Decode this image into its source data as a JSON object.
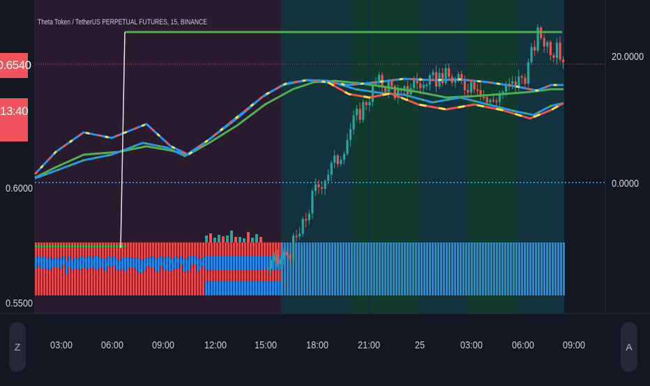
{
  "chart_title": "Theta Token / TetherUS PERPETUAL FUTURES, 15, BINANCE",
  "left_axis": {
    "current_price_badge": "0.6540",
    "countdown_badge": "13:40",
    "tick_labels": [
      "0.6000",
      "0.5500"
    ]
  },
  "right_axis": {
    "tick_labels": [
      "20.0000",
      "0.0000"
    ]
  },
  "time_axis": {
    "labels": [
      "03:00",
      "06:00",
      "09:00",
      "12:00",
      "15:00",
      "18:00",
      "21:00",
      "25",
      "03:00",
      "06:00",
      "09:00"
    ]
  },
  "buttons": {
    "auto_scale_label": "A",
    "zoom_label": "Z"
  },
  "colors": {
    "background": "#131722",
    "bg_zone_maroon": "#2a1a2e",
    "bg_zone_teal": "#12323d",
    "bg_zone_green": "#103a2c",
    "candle_up": "#26a69a",
    "candle_down": "#ef5350",
    "ma_green": "#4caf50",
    "ma_yellow": "#f5e04a",
    "ma_blue": "#2196f3",
    "ma_red": "#ef5350",
    "volume_blue": "#1e88e5",
    "volume_red": "#e04a4e",
    "dotted_line": "#29b6f6",
    "current_price_line": "#c0504d"
  },
  "chart_data": {
    "type": "line",
    "title": "Theta Token / TetherUS PERPETUAL FUTURES, 15, BINANCE",
    "x": [
      "03:00",
      "06:00",
      "09:00",
      "12:00",
      "15:00",
      "18:00",
      "21:00",
      "25",
      "03:00",
      "06:00",
      "09:00"
    ],
    "left_ylim": [
      0.55,
      0.66
    ],
    "right_ticks": [
      20.0,
      0.0
    ],
    "current_price": 0.654,
    "price_path": [
      0.564,
      0.566,
      0.571,
      0.58,
      0.596,
      0.604,
      0.611,
      0.624,
      0.633,
      0.642,
      0.641,
      0.636,
      0.643,
      0.64,
      0.645,
      0.644,
      0.641,
      0.643,
      0.633,
      0.638,
      0.641,
      0.646,
      0.663,
      0.657,
      0.653
    ],
    "series": [
      {
        "name": "",
        "color": "#4caf50"
      },
      {
        "name": "",
        "color": "#2196f3"
      }
    ],
    "grid": false
  }
}
